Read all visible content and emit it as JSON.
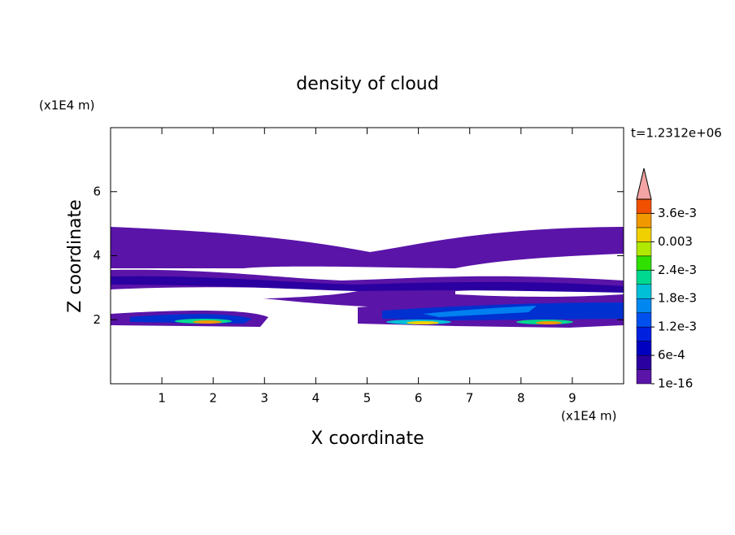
{
  "chart_data": {
    "type": "contour",
    "title": "density of cloud",
    "x_label": "X coordinate",
    "y_label": "Z coordinate",
    "x_unit": "(x1E4 m)",
    "y_unit": "(x1E4 m)",
    "time_label": "t=1.2312e+06",
    "xlim": [
      0,
      10
    ],
    "xticks": [
      1,
      2,
      3,
      4,
      5,
      6,
      7,
      8,
      9
    ],
    "ylim": [
      0,
      8
    ],
    "yticks": [
      2,
      4,
      6
    ],
    "colorbar": {
      "clim": [
        0,
        0.0039
      ],
      "ticks": [
        1e-16,
        {
          "value": 0.0006,
          "label": "6e-4"
        },
        {
          "value": 0.0012,
          "label": "1.2e-3"
        },
        {
          "value": 0.0018,
          "label": "1.8e-3"
        },
        {
          "value": 0.0024,
          "label": "2.4e-3"
        },
        0.003,
        {
          "value": 0.0036,
          "label": "3.6e-3"
        }
      ],
      "colors": [
        "#5a14a8",
        "#2a00a0",
        "#0000c0",
        "#0020e0",
        "#0050f0",
        "#0088f0",
        "#00c0d8",
        "#00d890",
        "#30e000",
        "#b0e800",
        "#f0d000",
        "#f09800",
        "#f05000"
      ],
      "extend_color": "#f4a4a4"
    }
  }
}
